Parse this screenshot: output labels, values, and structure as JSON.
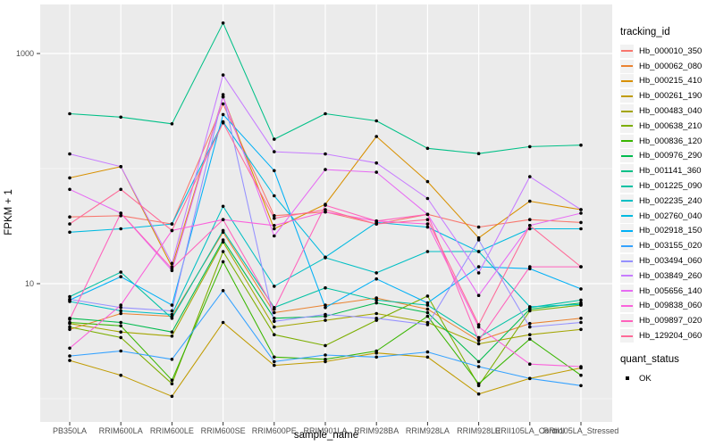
{
  "figure": {
    "background": "#FFFFFF",
    "panel_background": "#EBEBEB",
    "gridline_color": "#FFFFFF",
    "tick_color": "#333333",
    "tick_label_color": "#4D4D4D",
    "point_color": "#000000"
  },
  "axes": {
    "x_title": "sample_name",
    "y_title": "FPKM + 1",
    "y_tick_labels": [
      "1000",
      "10"
    ],
    "y_tick_values": [
      1000,
      10
    ],
    "y_minor_values": [
      100,
      1
    ]
  },
  "legend": {
    "tracking_title": "tracking_id",
    "quant_title": "quant_status",
    "quant_label": "OK"
  },
  "chart_data": {
    "type": "line",
    "title": "",
    "xlabel": "sample_name",
    "ylabel": "FPKM + 1",
    "y_scale": "log10",
    "y_breaks": [
      10,
      1000
    ],
    "grid": true,
    "legend_position": "right",
    "x": [
      "PB350LA",
      "RRIM600LA",
      "RRIM600LE",
      "RRIM600SE",
      "RRIM600PE",
      "RRIM901LA",
      "RRIM928BA",
      "RRIM928LA",
      "RRIM928LE",
      "RRII105LA_Control",
      "RRII105LA_Stressed"
    ],
    "series": [
      {
        "name": "Hb_000010_350",
        "color": "#F8766D",
        "values": [
          38,
          39,
          33,
          365,
          39,
          42,
          33,
          40,
          31,
          36,
          34
        ]
      },
      {
        "name": "Hb_000062_080",
        "color": "#EA8331",
        "values": [
          4.0,
          5.5,
          5.2,
          28,
          5.6,
          6.5,
          7.5,
          6.0,
          3.2,
          4.5,
          5.0
        ]
      },
      {
        "name": "Hb_000215_410",
        "color": "#D89000",
        "values": [
          83,
          104,
          14,
          420,
          30,
          49,
          190,
          77,
          25,
          52,
          44
        ]
      },
      {
        "name": "Hb_000261_190",
        "color": "#C09B00",
        "values": [
          2.15,
          1.6,
          1.05,
          4.6,
          1.95,
          2.1,
          2.5,
          2.3,
          1.1,
          1.5,
          1.85
        ]
      },
      {
        "name": "Hb_000483_040",
        "color": "#A3A500",
        "values": [
          4.5,
          3.8,
          3.5,
          23,
          4.2,
          4.8,
          5.5,
          4.6,
          3.0,
          3.6,
          4.0
        ]
      },
      {
        "name": "Hb_000638_210",
        "color": "#7CAE00",
        "values": [
          4.2,
          3.4,
          1.35,
          19,
          3.6,
          2.9,
          4.8,
          7.8,
          1.3,
          5.8,
          6.5
        ]
      },
      {
        "name": "Hb_000836_120",
        "color": "#39B600",
        "values": [
          4.6,
          4.3,
          1.45,
          15.5,
          2.3,
          2.2,
          2.6,
          5.2,
          1.35,
          3.3,
          1.6
        ]
      },
      {
        "name": "Hb_000976_290",
        "color": "#00BB4E",
        "values": [
          5.0,
          4.6,
          3.8,
          24,
          5.0,
          5.2,
          6.8,
          5.6,
          2.1,
          6.0,
          6.8
        ]
      },
      {
        "name": "Hb_001141_360",
        "color": "#00C087",
        "values": [
          300,
          280,
          245,
          1840,
          180,
          300,
          260,
          150,
          135,
          155,
          160
        ]
      },
      {
        "name": "Hb_001225_090",
        "color": "#00C1A3",
        "values": [
          7.7,
          12.6,
          5.0,
          29,
          6.2,
          9.2,
          7.2,
          6.5,
          3.4,
          6.2,
          7.2
        ]
      },
      {
        "name": "Hb_002235_240",
        "color": "#00BFC4",
        "values": [
          7.0,
          5.8,
          5.4,
          47,
          9.5,
          16.8,
          12.4,
          19,
          19,
          6.3,
          6.6
        ]
      },
      {
        "name": "Hb_002760_040",
        "color": "#00BAE0",
        "values": [
          28,
          30,
          33,
          255,
          58,
          17,
          34,
          31,
          19,
          30,
          30
        ]
      },
      {
        "name": "Hb_002918_150",
        "color": "#00B0F6",
        "values": [
          7.2,
          11.5,
          6.5,
          295,
          96,
          6.2,
          11,
          6.8,
          14,
          13.5,
          9.0
        ]
      },
      {
        "name": "Hb_003155_020",
        "color": "#35A2FF",
        "values": [
          2.35,
          2.6,
          2.2,
          8.7,
          2.1,
          2.4,
          2.3,
          2.55,
          1.9,
          1.5,
          1.3
        ]
      },
      {
        "name": "Hb_003494_060",
        "color": "#9590FF",
        "values": [
          7.3,
          6.2,
          5.8,
          440,
          4.7,
          5.4,
          5.0,
          4.4,
          24,
          4.2,
          4.6
        ]
      },
      {
        "name": "Hb_003849_260",
        "color": "#C77CFF",
        "values": [
          134,
          104,
          15,
          650,
          140,
          134,
          112,
          55,
          12.4,
          85,
          44
        ]
      },
      {
        "name": "Hb_005656_140",
        "color": "#E76BF3",
        "values": [
          66,
          41,
          13,
          420,
          26,
          98,
          93,
          40,
          7.9,
          32,
          41
        ]
      },
      {
        "name": "Hb_009838_060",
        "color": "#FA62DB",
        "values": [
          2.75,
          6.5,
          29,
          36,
          32,
          42,
          35,
          33,
          4.2,
          2.0,
          1.9
        ]
      },
      {
        "name": "Hb_009897_020",
        "color": "#FF62BC",
        "values": [
          4.9,
          41,
          13.5,
          36,
          6.0,
          48,
          35,
          40,
          3.2,
          14,
          14
        ]
      },
      {
        "name": "Hb_129204_060",
        "color": "#FF6A98",
        "values": [
          33,
          66,
          29,
          250,
          37,
          44,
          33,
          36,
          4.4,
          32,
          14
        ]
      }
    ]
  }
}
